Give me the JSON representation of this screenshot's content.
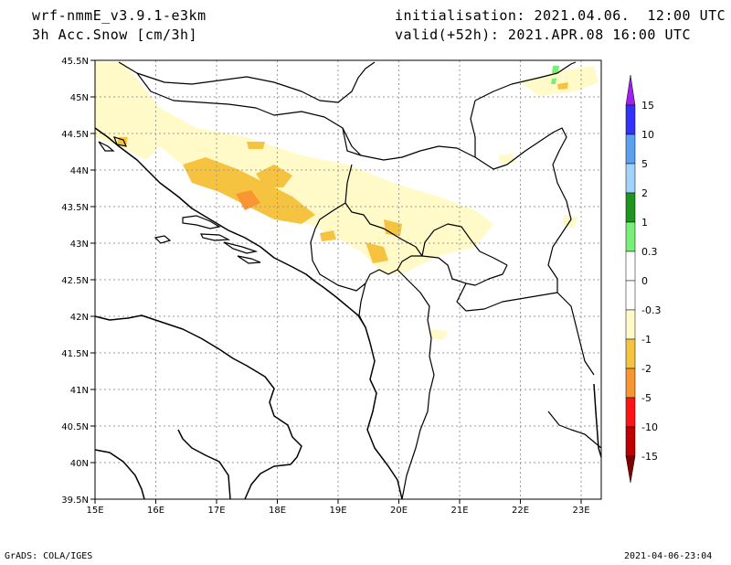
{
  "header": {
    "model": "wrf-nmmE_v3.9.1-e3km",
    "field": "3h Acc.Snow [cm/3h]",
    "init": "initialisation: 2021.04.06.  12:00 UTC",
    "valid": "valid(+52h): 2021.APR.08 16:00 UTC"
  },
  "footer": {
    "left": "GrADS: COLA/IGES",
    "right": "2021-04-06-23:04"
  },
  "map": {
    "lat_labels": [
      "45.5N",
      "45N",
      "44.5N",
      "44N",
      "43.5N",
      "43N",
      "42.5N",
      "42N",
      "41.5N",
      "41N",
      "40.5N",
      "40N",
      "39.5N"
    ],
    "lon_labels": [
      "15E",
      "16E",
      "17E",
      "18E",
      "19E",
      "20E",
      "21E",
      "22E",
      "23E"
    ]
  },
  "legend": {
    "labels": [
      "15",
      "10",
      "5",
      "2",
      "1",
      "0.3",
      "0",
      "-0.3",
      "-1",
      "-2",
      "-5",
      "-10",
      "-15"
    ],
    "colors": {
      "top_arrow": "#a020f0",
      "c15_10": "#3232ff",
      "c10_5": "#5aa0f0",
      "c5_2": "#a0d2fa",
      "c2_1": "#1e961e",
      "c1_03": "#78f078",
      "c03_0": "#ffffff",
      "c0_m03": "#ffffff",
      "cm03_m1": "#fffac8",
      "cm1_m2": "#f5c340",
      "cm2_m5": "#fa9632",
      "cm5_m10": "#ff1414",
      "cm10_m15": "#c00000",
      "bottom_arrow": "#800000"
    }
  }
}
